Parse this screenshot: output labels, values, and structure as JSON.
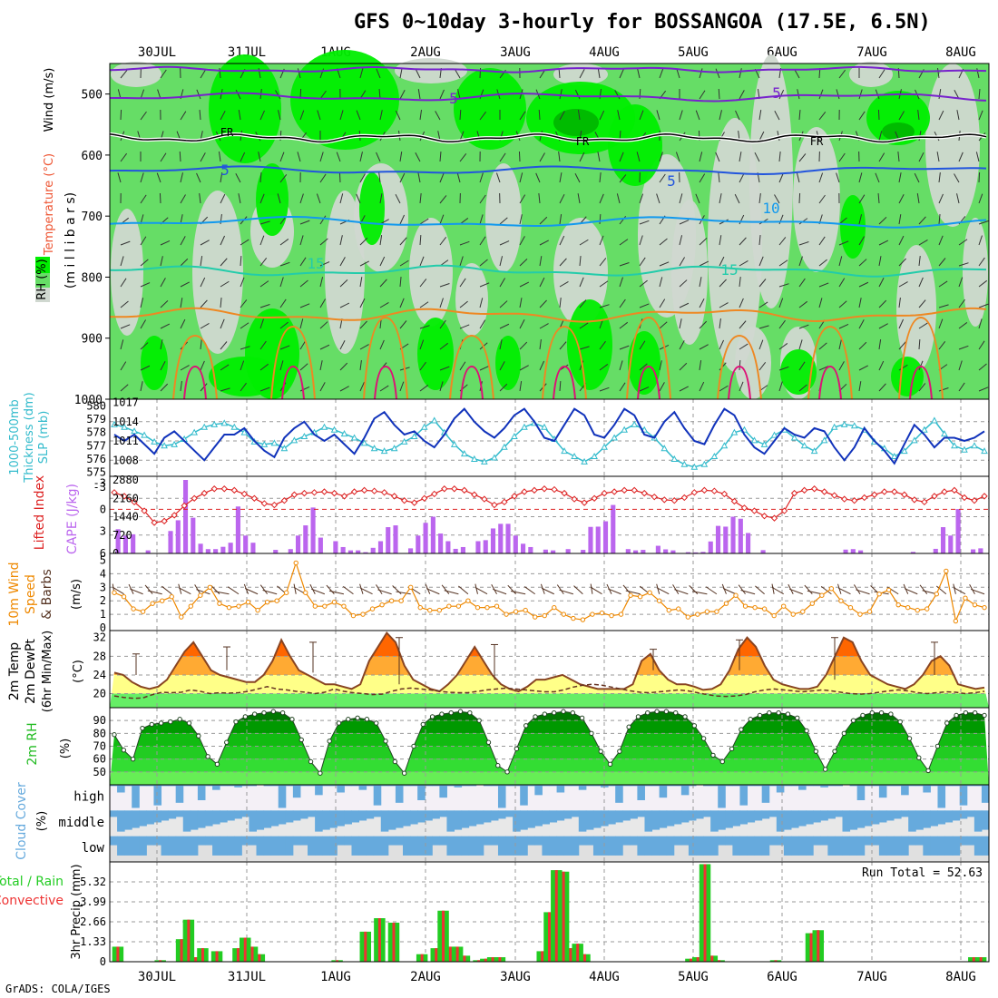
{
  "title": "GFS 0~10day 3-hourly for BOSSANGOA (17.5E, 6.5N)",
  "credit": "GrADS: COLA/IGES",
  "colors": {
    "rh_light": "#d0d8d0",
    "rh_mid": "#66dd66",
    "rh_bright": "#00ee00",
    "rh_dark": "#00bb00",
    "wind_purple": "#7722cc",
    "freezing": "#000000",
    "t5": "#2255dd",
    "t10": "#1199ee",
    "t15": "#22ccaa",
    "t20": "#ee8822",
    "t25": "#dd1177",
    "slp": "#1133bb",
    "thickness": "#33bbcc",
    "li": "#dd2222",
    "cape": "#bb66ee",
    "wind10": "#ee8800",
    "temp_fill_low": "#ffff88",
    "temp_fill_mid": "#ffaa33",
    "temp_fill_high": "#ff6600",
    "rh_fill": "#22bb22",
    "cloud": "#66aadd",
    "precip_total": "#22cc22",
    "precip_conv": "#ee3333"
  },
  "chart_data": [
    {
      "type": "heatmap",
      "panel": "upper-air",
      "labels": [
        "Wind (m/s)",
        "Temperature (°C)",
        "RH (%)",
        "(m i l l i b a r s)"
      ],
      "x_dates": [
        "30JUL",
        "31JUL",
        "1AUG",
        "2AUG",
        "3AUG",
        "4AUG",
        "5AUG",
        "6AUG",
        "7AUG",
        "8AUG"
      ],
      "y_ticks": [
        500,
        600,
        700,
        800,
        900,
        1000
      ],
      "ylim": [
        450,
        1000
      ],
      "contour_labels": [
        "5",
        "FR",
        "5",
        "10",
        "15",
        "5"
      ]
    },
    {
      "type": "line",
      "panel": "slp-thickness",
      "labels": [
        "1000-500mb",
        "Thickness (dm)",
        "SLP (mb)"
      ],
      "y_left_ticks": [
        "580",
        "579",
        "578",
        "577",
        "576",
        "575"
      ],
      "y_right_ticks": [
        "1017",
        "1014",
        "1011",
        "1008"
      ],
      "thickness_dm": [
        578.6,
        578.4,
        578.1,
        577.8,
        577.3,
        577.0,
        577.1,
        577.5,
        578.0,
        578.4,
        578.6,
        578.7,
        578.4,
        578.0,
        577.3,
        577.1,
        577.2,
        576.8,
        577.4,
        577.7,
        578.0,
        578.4,
        578.2,
        577.9,
        577.6,
        577.2,
        576.8,
        576.6,
        576.8,
        577.3,
        577.7,
        578.4,
        578.9,
        578.0,
        577.1,
        576.4,
        576.0,
        575.8,
        576.1,
        576.9,
        577.7,
        578.4,
        578.7,
        578.4,
        577.5,
        576.6,
        576.2,
        575.8,
        576.2,
        576.9,
        577.6,
        578.2,
        578.6,
        578.2,
        577.6,
        576.8,
        576.0,
        575.6,
        575.4,
        575.6,
        576.2,
        577.0,
        578.0,
        578.2,
        577.4,
        577.1,
        577.8,
        578.2,
        577.6,
        577.0,
        576.6,
        577.4,
        578.4,
        578.6,
        578.5,
        578.2,
        577.3,
        576.8,
        576.2,
        576.6,
        577.4,
        578.2,
        578.9,
        577.9,
        577.0,
        576.7,
        577.0,
        576.6
      ],
      "slp_mb": [
        1012.0,
        1011.0,
        1012.0,
        1010.5,
        1009.0,
        1011.5,
        1012.5,
        1011.0,
        1009.5,
        1008.0,
        1010.0,
        1012.0,
        1012.0,
        1013.0,
        1011.0,
        1009.5,
        1008.5,
        1011.5,
        1013.0,
        1014.0,
        1012.0,
        1011.0,
        1012.0,
        1010.5,
        1009.0,
        1011.5,
        1014.5,
        1015.5,
        1013.5,
        1012.0,
        1012.5,
        1011.0,
        1010.0,
        1012.0,
        1014.5,
        1016.0,
        1014.0,
        1012.5,
        1011.5,
        1013.0,
        1015.0,
        1016.0,
        1014.0,
        1011.5,
        1011.0,
        1013.5,
        1016.0,
        1015.0,
        1012.0,
        1011.5,
        1013.5,
        1016.0,
        1015.0,
        1012.0,
        1011.5,
        1014.0,
        1015.5,
        1013.0,
        1011.0,
        1010.5,
        1013.5,
        1016.0,
        1015.0,
        1012.0,
        1010.0,
        1009.0,
        1011.0,
        1013.0,
        1012.0,
        1011.5,
        1013.0,
        1012.5,
        1010.0,
        1008.0,
        1010.0,
        1013.0,
        1011.0,
        1009.5,
        1007.5,
        1010.5,
        1013.5,
        1012.0,
        1010.0,
        1011.5,
        1011.5,
        1011.0,
        1011.5,
        1012.5
      ]
    },
    {
      "type": "bar",
      "panel": "stability",
      "labels": [
        "Lifted Index",
        "CAPE (J/kg)"
      ],
      "y_left_ticks": [
        "-3",
        "-3",
        "0",
        "3",
        "6"
      ],
      "y_right_ticks": [
        "2880",
        "2160",
        "1440",
        "720",
        "0"
      ],
      "lifted_index": [
        -2.3,
        -1.8,
        -1.0,
        0.2,
        1.8,
        1.6,
        0.8,
        -0.5,
        -1.5,
        -2.2,
        -2.8,
        -2.8,
        -2.6,
        -2.1,
        -1.5,
        -0.8,
        -0.6,
        -1.2,
        -2.0,
        -2.2,
        -2.3,
        -2.4,
        -2.2,
        -1.8,
        -2.4,
        -2.6,
        -2.5,
        -2.3,
        -1.8,
        -1.2,
        -0.9,
        -1.5,
        -2.1,
        -2.8,
        -2.8,
        -2.6,
        -2.0,
        -1.4,
        -0.6,
        -1.0,
        -1.8,
        -2.4,
        -2.6,
        -2.8,
        -2.7,
        -2.2,
        -1.4,
        -0.9,
        -1.5,
        -2.2,
        -2.4,
        -2.6,
        -2.6,
        -2.2,
        -1.7,
        -1.3,
        -1.2,
        -1.6,
        -2.3,
        -2.6,
        -2.5,
        -2.1,
        -1.1,
        -0.2,
        0.2,
        0.9,
        1.2,
        0.2,
        -2.2,
        -2.6,
        -2.8,
        -2.4,
        -1.9,
        -1.4,
        -1.2,
        -1.6,
        -2.0,
        -2.4,
        -2.4,
        -2.0,
        -1.3,
        -1.0,
        -1.8,
        -2.4,
        -2.6,
        -1.6,
        -1.2,
        -1.8
      ],
      "cape_jkg": [
        950,
        700,
        750,
        0,
        120,
        0,
        0,
        880,
        1300,
        2880,
        1400,
        380,
        170,
        170,
        260,
        420,
        1840,
        700,
        420,
        0,
        0,
        140,
        0,
        170,
        700,
        1100,
        1800,
        620,
        0,
        480,
        250,
        120,
        120,
        50,
        220,
        480,
        1030,
        1100,
        0,
        200,
        700,
        1200,
        1440,
        780,
        480,
        180,
        250,
        0,
        480,
        520,
        980,
        1160,
        1160,
        700,
        380,
        250,
        0,
        150,
        120,
        0,
        170,
        0,
        140,
        1040,
        1050,
        1260,
        1900,
        0,
        170,
        120,
        140,
        0,
        300,
        160,
        120,
        0,
        50,
        40,
        60,
        470,
        1080,
        1050,
        1440,
        1360,
        800,
        0,
        130,
        0,
        0,
        0,
        0,
        0,
        0,
        0,
        0,
        0,
        0,
        150,
        170,
        120,
        0,
        0,
        0,
        0,
        0,
        0,
        60,
        0,
        0,
        180,
        1030,
        700,
        1740,
        0,
        160,
        200
      ]
    },
    {
      "type": "line",
      "panel": "wind10m",
      "labels": [
        "10m Wind",
        "Speed",
        "& Barbs",
        "(m/s)"
      ],
      "y_ticks": [
        "5",
        "4",
        "3",
        "2",
        "1",
        "0"
      ],
      "speed_ms": [
        2.6,
        2.3,
        1.4,
        1.2,
        1.8,
        2.0,
        2.3,
        0.8,
        1.6,
        2.4,
        3.0,
        1.8,
        1.5,
        1.6,
        1.9,
        1.3,
        1.9,
        2.0,
        2.6,
        4.8,
        2.6,
        1.6,
        1.6,
        1.9,
        1.6,
        0.9,
        1.0,
        1.4,
        1.7,
        2.0,
        2.0,
        3.0,
        1.5,
        1.3,
        1.3,
        1.6,
        1.6,
        2.0,
        1.5,
        1.5,
        1.6,
        1.0,
        1.2,
        1.3,
        0.8,
        0.9,
        1.5,
        1.0,
        0.7,
        0.6,
        1.0,
        1.1,
        0.9,
        1.0,
        2.4,
        2.3,
        2.6,
        2.0,
        1.3,
        1.4,
        0.8,
        1.0,
        1.2,
        1.2,
        1.8,
        2.4,
        1.6,
        1.5,
        1.4,
        0.9,
        1.6,
        1.0,
        1.2,
        1.8,
        2.4,
        2.9,
        2.0,
        1.5,
        1.0,
        1.2,
        2.5,
        2.8,
        1.7,
        1.5,
        1.3,
        1.4,
        2.5,
        4.2,
        0.5,
        2.2,
        1.7,
        1.5
      ]
    },
    {
      "type": "area",
      "panel": "temp2m",
      "labels": [
        "2m Temp",
        "2m DewPt",
        "(6hr Min/Max)",
        "(°C)"
      ],
      "y_ticks": [
        "32",
        "28",
        "24",
        "20"
      ],
      "temp_c": [
        24.5,
        24.0,
        22.5,
        21.5,
        21.0,
        21.5,
        23.0,
        26.0,
        29.0,
        31.0,
        28.0,
        25.0,
        24.0,
        23.5,
        23.0,
        22.5,
        22.5,
        24.0,
        27.0,
        31.5,
        28.0,
        25.0,
        24.0,
        23.0,
        22.0,
        22.0,
        21.5,
        21.0,
        22.0,
        27.0,
        30.0,
        33.0,
        31.0,
        26.0,
        23.0,
        22.0,
        21.0,
        20.5,
        22.0,
        24.0,
        27.0,
        30.0,
        27.0,
        24.0,
        22.0,
        21.0,
        20.5,
        21.5,
        23.0,
        23.0,
        23.5,
        24.0,
        23.0,
        22.0,
        21.5,
        21.0,
        21.0,
        21.0,
        21.0,
        22.0,
        27.0,
        28.5,
        25.0,
        23.0,
        22.0,
        22.0,
        21.5,
        20.8,
        21.0,
        22.0,
        25.0,
        29.5,
        32.0,
        30.0,
        26.0,
        23.0,
        22.0,
        21.5,
        21.0,
        21.0,
        21.5,
        24.0,
        28.0,
        32.0,
        31.0,
        27.0,
        24.0,
        23.0,
        22.0,
        21.5,
        21.0,
        22.0,
        24.0,
        27.0,
        28.0,
        26.0,
        22.0,
        21.5,
        21.0,
        21.3
      ],
      "dewpt_c": [
        19.5,
        19.2,
        19.0,
        19.1,
        19.8,
        20.3,
        20.2,
        20.3,
        20.8,
        20.5,
        20.0,
        20.2,
        20.1,
        20.2,
        20.5,
        21.0,
        21.5,
        21.0,
        20.8,
        20.5,
        20.3,
        20.0,
        20.3,
        21.0,
        20.5,
        20.2,
        20.0,
        19.8,
        19.9,
        20.5,
        21.0,
        21.2,
        21.0,
        20.8,
        20.5,
        20.3,
        20.2,
        20.2,
        20.5,
        20.8,
        21.0,
        21.2,
        21.0,
        20.8,
        20.6,
        20.4,
        20.4,
        20.8,
        21.4,
        21.8,
        22.0,
        21.8,
        21.4,
        21.0,
        20.6,
        20.3,
        20.2,
        20.4,
        20.6,
        20.8,
        20.6,
        20.2,
        19.8,
        19.5,
        19.4,
        19.5,
        19.8,
        20.4,
        20.8,
        21.0,
        20.8,
        20.6,
        20.4,
        20.6,
        20.8,
        20.6,
        20.3,
        20.0,
        19.9,
        20.0,
        20.3,
        20.6,
        20.8,
        20.6,
        20.2,
        20.0,
        20.2,
        20.4,
        20.3,
        20.0,
        20.2,
        20.5
      ]
    },
    {
      "type": "area",
      "panel": "rh2m",
      "labels": [
        "2m RH",
        "(%)"
      ],
      "y_ticks": [
        "90",
        "80",
        "70",
        "60",
        "50"
      ],
      "rh_pct": [
        79,
        67,
        60,
        84,
        87,
        88,
        89,
        91,
        88,
        78,
        62,
        56,
        73,
        89,
        93,
        95,
        96,
        97,
        96,
        91,
        75,
        58,
        49,
        74,
        88,
        91,
        92,
        91,
        88,
        74,
        58,
        49,
        70,
        87,
        93,
        95,
        96,
        97,
        96,
        90,
        73,
        55,
        50,
        68,
        86,
        93,
        95,
        96,
        97,
        96,
        92,
        80,
        66,
        56,
        66,
        85,
        93,
        96,
        97,
        97,
        96,
        93,
        86,
        76,
        63,
        58,
        68,
        83,
        91,
        94,
        96,
        96,
        95,
        92,
        82,
        66,
        52,
        66,
        80,
        90,
        94,
        96,
        96,
        95,
        89,
        76,
        61,
        51,
        70,
        88,
        94,
        96,
        96,
        94
      ]
    },
    {
      "type": "heatmap",
      "panel": "cloud",
      "labels": [
        "Cloud Cover",
        "(%)"
      ],
      "rows": [
        "high",
        "middle",
        "low"
      ]
    },
    {
      "type": "bar",
      "panel": "precip",
      "labels": [
        "3hr Precip (mm)",
        "Total / Rain",
        "Convective"
      ],
      "run_total_label": "Run Total = 52.63",
      "y_ticks": [
        "5.32",
        "3.99",
        "2.66",
        "1.33",
        "0"
      ],
      "ylim": [
        0,
        6.65
      ],
      "precip_mm": [
        1.0,
        0,
        0,
        0,
        0,
        0,
        0.1,
        0,
        0,
        1.5,
        2.8,
        0.3,
        0.9,
        0,
        0.7,
        0,
        0,
        0.9,
        1.6,
        1.0,
        0.5,
        0,
        0,
        0,
        0,
        0,
        0,
        0,
        0,
        0,
        0,
        0.1,
        0,
        0,
        0,
        2.0,
        0,
        2.9,
        0,
        2.6,
        0,
        0,
        0,
        0.5,
        0,
        0.9,
        3.4,
        1.0,
        1.0,
        0.4,
        0,
        0.1,
        0.2,
        0.3,
        0.3,
        0,
        0,
        0,
        0,
        0,
        0.7,
        3.3,
        6.1,
        6.0,
        0.9,
        1.2,
        0.5,
        0,
        0,
        0,
        0,
        0,
        0,
        0,
        0,
        0,
        0,
        0,
        0,
        0,
        0,
        0.2,
        0.3,
        6.5,
        0.4,
        0.1,
        0,
        0,
        0,
        0,
        0,
        0,
        0,
        0.1,
        0,
        0,
        0,
        0,
        1.9,
        2.1,
        0,
        0,
        0,
        0,
        0,
        0,
        0,
        0,
        0,
        0,
        0,
        0,
        0,
        0,
        0,
        0,
        0,
        0,
        0,
        0,
        0,
        0.3,
        0.3
      ]
    }
  ]
}
